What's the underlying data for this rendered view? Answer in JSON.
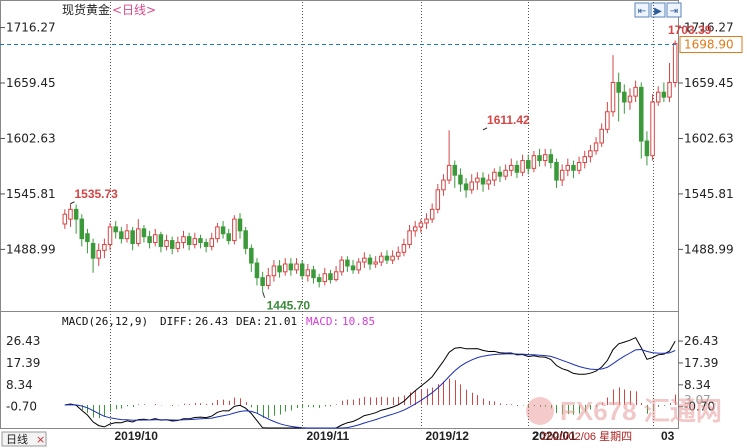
{
  "header": {
    "title": "现货黄金",
    "period": "<日线>",
    "buttons": [
      "⇤",
      "▶",
      "⇥"
    ]
  },
  "bottom_bar": {
    "period_tag": "日线",
    "close_glyph": "×"
  },
  "colors": {
    "up": "#d64545",
    "down": "#3a9a3a",
    "price_line": "#1a7bc4",
    "current_price_bg": "#ffffff",
    "current_price_border": "#e07a1a",
    "diff_line": "#000000",
    "dea_line": "#1a2fb8",
    "macd_up": "#d64545",
    "macd_down": "#3a9a3a",
    "grid": "#555555"
  },
  "watermark": {
    "brand": "FX678 汇通网",
    "date_text": "2020/02/06 星期四",
    "date_prefix": "2",
    "date_suffix": "03"
  },
  "chart_data": [
    {
      "type": "candlestick",
      "title": "现货黄金",
      "period": "日线",
      "y_ticks": [
        1716.27,
        1659.45,
        1602.63,
        1545.81,
        1488.99
      ],
      "ylim": [
        1432,
        1724
      ],
      "x_ticks": [
        "2019/10",
        "2019/11",
        "2019/12",
        "2020/01",
        ""
      ],
      "x_tick_index": [
        8,
        42,
        63,
        82,
        104
      ],
      "current_price": "1698.90",
      "current_price_value": 1698.9,
      "annotations": [
        {
          "text": "1535.73",
          "value": 1535.73,
          "index": 1,
          "color": "red"
        },
        {
          "text": "1445.70",
          "value": 1445.7,
          "index": 35,
          "color": "green"
        },
        {
          "text": "1611.42",
          "value": 1611.42,
          "index": 74,
          "color": "red"
        },
        {
          "text": "1703.39",
          "value": 1703.39,
          "index": 117,
          "color": "red"
        }
      ],
      "candles": [
        [
          1515,
          1525,
          1530,
          1510
        ],
        [
          1520,
          1530,
          1536,
          1512
        ],
        [
          1530,
          1520,
          1535,
          1505
        ],
        [
          1520,
          1500,
          1525,
          1492
        ],
        [
          1505,
          1497,
          1510,
          1485
        ],
        [
          1495,
          1480,
          1500,
          1465
        ],
        [
          1480,
          1488,
          1495,
          1472
        ],
        [
          1488,
          1494,
          1500,
          1480
        ],
        [
          1494,
          1512,
          1516,
          1488
        ],
        [
          1512,
          1507,
          1518,
          1500
        ],
        [
          1507,
          1500,
          1512,
          1495
        ],
        [
          1500,
          1508,
          1515,
          1496
        ],
        [
          1508,
          1495,
          1512,
          1488
        ],
        [
          1495,
          1510,
          1520,
          1492
        ],
        [
          1510,
          1502,
          1514,
          1496
        ],
        [
          1502,
          1496,
          1508,
          1490
        ],
        [
          1496,
          1504,
          1510,
          1492
        ],
        [
          1504,
          1492,
          1507,
          1486
        ],
        [
          1492,
          1498,
          1504,
          1488
        ],
        [
          1498,
          1490,
          1502,
          1484
        ],
        [
          1490,
          1496,
          1502,
          1486
        ],
        [
          1496,
          1502,
          1508,
          1490
        ],
        [
          1502,
          1494,
          1506,
          1488
        ],
        [
          1494,
          1500,
          1506,
          1490
        ],
        [
          1500,
          1496,
          1504,
          1490
        ],
        [
          1496,
          1492,
          1500,
          1486
        ],
        [
          1492,
          1500,
          1506,
          1488
        ],
        [
          1500,
          1512,
          1516,
          1496
        ],
        [
          1512,
          1505,
          1518,
          1500
        ],
        [
          1505,
          1498,
          1510,
          1494
        ],
        [
          1498,
          1520,
          1524,
          1494
        ],
        [
          1520,
          1508,
          1526,
          1500
        ],
        [
          1508,
          1490,
          1512,
          1484
        ],
        [
          1490,
          1475,
          1494,
          1466
        ],
        [
          1475,
          1460,
          1480,
          1452
        ],
        [
          1460,
          1452,
          1466,
          1446
        ],
        [
          1452,
          1462,
          1470,
          1448
        ],
        [
          1462,
          1472,
          1478,
          1456
        ],
        [
          1472,
          1466,
          1478,
          1460
        ],
        [
          1466,
          1474,
          1480,
          1462
        ],
        [
          1474,
          1468,
          1480,
          1462
        ],
        [
          1468,
          1474,
          1480,
          1464
        ],
        [
          1474,
          1462,
          1478,
          1458
        ],
        [
          1462,
          1468,
          1474,
          1456
        ],
        [
          1468,
          1460,
          1472,
          1454
        ],
        [
          1460,
          1456,
          1464,
          1450
        ],
        [
          1456,
          1464,
          1470,
          1452
        ],
        [
          1464,
          1458,
          1468,
          1454
        ],
        [
          1458,
          1466,
          1472,
          1456
        ],
        [
          1466,
          1478,
          1482,
          1462
        ],
        [
          1478,
          1472,
          1482,
          1466
        ],
        [
          1472,
          1468,
          1478,
          1464
        ],
        [
          1468,
          1476,
          1480,
          1464
        ],
        [
          1476,
          1480,
          1486,
          1470
        ],
        [
          1480,
          1474,
          1484,
          1468
        ],
        [
          1474,
          1476,
          1482,
          1470
        ],
        [
          1476,
          1482,
          1486,
          1472
        ],
        [
          1482,
          1478,
          1488,
          1474
        ],
        [
          1478,
          1482,
          1488,
          1474
        ],
        [
          1482,
          1486,
          1492,
          1478
        ],
        [
          1486,
          1494,
          1500,
          1482
        ],
        [
          1494,
          1508,
          1514,
          1490
        ],
        [
          1508,
          1512,
          1518,
          1502
        ],
        [
          1512,
          1516,
          1520,
          1506
        ],
        [
          1516,
          1520,
          1526,
          1510
        ],
        [
          1520,
          1530,
          1536,
          1516
        ],
        [
          1530,
          1550,
          1556,
          1526
        ],
        [
          1550,
          1560,
          1566,
          1544
        ],
        [
          1560,
          1575,
          1611,
          1556
        ],
        [
          1575,
          1565,
          1580,
          1552
        ],
        [
          1565,
          1556,
          1572,
          1548
        ],
        [
          1556,
          1550,
          1562,
          1542
        ],
        [
          1550,
          1558,
          1566,
          1546
        ],
        [
          1558,
          1562,
          1568,
          1550
        ],
        [
          1562,
          1556,
          1568,
          1548
        ],
        [
          1556,
          1560,
          1566,
          1550
        ],
        [
          1560,
          1568,
          1572,
          1554
        ],
        [
          1568,
          1564,
          1574,
          1558
        ],
        [
          1564,
          1570,
          1576,
          1560
        ],
        [
          1570,
          1575,
          1582,
          1564
        ],
        [
          1575,
          1568,
          1580,
          1562
        ],
        [
          1568,
          1580,
          1586,
          1564
        ],
        [
          1580,
          1572,
          1586,
          1566
        ],
        [
          1572,
          1585,
          1590,
          1568
        ],
        [
          1585,
          1580,
          1592,
          1574
        ],
        [
          1580,
          1586,
          1592,
          1574
        ],
        [
          1586,
          1578,
          1592,
          1572
        ],
        [
          1578,
          1560,
          1582,
          1552
        ],
        [
          1560,
          1570,
          1576,
          1554
        ],
        [
          1570,
          1575,
          1582,
          1564
        ],
        [
          1575,
          1570,
          1580,
          1562
        ],
        [
          1570,
          1578,
          1584,
          1566
        ],
        [
          1578,
          1584,
          1590,
          1572
        ],
        [
          1584,
          1590,
          1596,
          1578
        ],
        [
          1590,
          1598,
          1604,
          1586
        ],
        [
          1598,
          1612,
          1618,
          1594
        ],
        [
          1612,
          1630,
          1640,
          1608
        ],
        [
          1630,
          1660,
          1688,
          1625
        ],
        [
          1660,
          1650,
          1670,
          1620
        ],
        [
          1650,
          1640,
          1658,
          1628
        ],
        [
          1640,
          1646,
          1654,
          1632
        ],
        [
          1646,
          1655,
          1662,
          1640
        ],
        [
          1655,
          1600,
          1660,
          1582
        ],
        [
          1600,
          1585,
          1610,
          1575
        ],
        [
          1585,
          1640,
          1648,
          1580
        ],
        [
          1640,
          1650,
          1656,
          1636
        ],
        [
          1650,
          1645,
          1660,
          1640
        ],
        [
          1645,
          1660,
          1680,
          1640
        ],
        [
          1660,
          1700,
          1703,
          1655
        ]
      ]
    },
    {
      "type": "macd",
      "params": "MACD(26,12,9)",
      "diff_label": "DIFF:",
      "diff": "26.43",
      "dea_label": "DEA:",
      "dea": "21.01",
      "macd_label": "MACD:",
      "macd": "10.85",
      "y_ticks": [
        26.43,
        17.39,
        8.34,
        -0.7
      ],
      "y_ticks_text": [
        "26.43",
        "17.39",
        "8.34",
        "-0.70"
      ],
      "y_bottom_text": "3.07",
      "ylim": [
        -9.5,
        31
      ]
    }
  ]
}
